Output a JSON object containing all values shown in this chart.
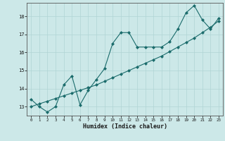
{
  "title": "",
  "xlabel": "Humidex (Indice chaleur)",
  "bg_color": "#cce8e8",
  "line_color": "#1a6b6b",
  "grid_color": "#b0d4d4",
  "xlim": [
    -0.5,
    23.5
  ],
  "ylim": [
    12.5,
    18.75
  ],
  "yticks": [
    13,
    14,
    15,
    16,
    17,
    18
  ],
  "xticks": [
    0,
    1,
    2,
    3,
    4,
    5,
    6,
    7,
    8,
    9,
    10,
    11,
    12,
    13,
    14,
    15,
    16,
    17,
    18,
    19,
    20,
    21,
    22,
    23
  ],
  "series1_x": [
    0,
    1,
    2,
    3,
    4,
    5,
    6,
    7,
    8,
    9,
    10,
    11,
    12,
    13,
    14,
    15,
    16,
    17,
    18,
    19,
    20,
    21,
    22,
    23
  ],
  "series1_y": [
    13.4,
    13.0,
    12.7,
    13.0,
    14.2,
    14.7,
    13.1,
    13.9,
    14.5,
    15.1,
    16.5,
    17.1,
    17.1,
    16.3,
    16.3,
    16.3,
    16.3,
    16.6,
    17.3,
    18.2,
    18.6,
    17.8,
    17.3,
    17.9
  ],
  "series2_x": [
    0,
    1,
    2,
    3,
    4,
    5,
    6,
    7,
    8,
    9,
    10,
    11,
    12,
    13,
    14,
    15,
    16,
    17,
    18,
    19,
    20,
    21,
    22,
    23
  ],
  "series2_y": [
    13.0,
    13.15,
    13.3,
    13.45,
    13.6,
    13.75,
    13.9,
    14.05,
    14.2,
    14.4,
    14.6,
    14.8,
    15.0,
    15.2,
    15.4,
    15.6,
    15.8,
    16.05,
    16.3,
    16.55,
    16.8,
    17.1,
    17.4,
    17.75
  ]
}
